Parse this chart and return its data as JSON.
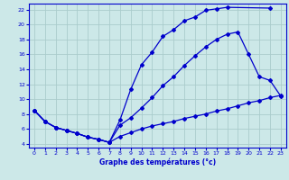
{
  "bg_color": "#cce8e8",
  "grid_color": "#aacccc",
  "line_color": "#0000cc",
  "xlim": [
    -0.5,
    23.5
  ],
  "ylim": [
    3.5,
    22.8
  ],
  "xticks": [
    0,
    1,
    2,
    3,
    4,
    5,
    6,
    7,
    8,
    9,
    10,
    11,
    12,
    13,
    14,
    15,
    16,
    17,
    18,
    19,
    20,
    21,
    22,
    23
  ],
  "yticks": [
    4,
    6,
    8,
    10,
    12,
    14,
    16,
    18,
    20,
    22
  ],
  "line1_x": [
    0,
    1,
    2,
    3,
    4,
    5,
    6,
    7,
    8,
    9,
    10,
    11,
    12,
    13,
    14,
    15,
    16,
    17,
    18,
    22
  ],
  "line1_y": [
    8.5,
    7.0,
    6.2,
    5.8,
    5.4,
    4.9,
    4.6,
    4.2,
    7.2,
    11.3,
    14.6,
    16.3,
    18.4,
    19.3,
    20.5,
    21.0,
    21.9,
    22.1,
    22.3,
    22.2
  ],
  "line2_x": [
    0,
    1,
    2,
    3,
    4,
    5,
    6,
    7,
    8,
    9,
    10,
    11,
    12,
    13,
    14,
    15,
    16,
    17,
    18,
    19,
    20,
    21,
    22,
    23
  ],
  "line2_y": [
    8.5,
    7.0,
    6.2,
    5.8,
    5.4,
    4.9,
    4.6,
    4.2,
    6.5,
    7.5,
    8.8,
    10.2,
    11.8,
    13.0,
    14.5,
    15.8,
    17.0,
    18.0,
    18.7,
    19.0,
    16.0,
    13.0,
    12.5,
    10.4
  ],
  "line3_x": [
    0,
    1,
    2,
    3,
    4,
    5,
    6,
    7,
    8,
    9,
    10,
    11,
    12,
    13,
    14,
    15,
    16,
    17,
    18,
    19,
    20,
    21,
    22,
    23
  ],
  "line3_y": [
    8.5,
    7.0,
    6.2,
    5.8,
    5.4,
    4.9,
    4.6,
    4.2,
    5.0,
    5.5,
    6.0,
    6.4,
    6.7,
    7.0,
    7.4,
    7.7,
    8.0,
    8.4,
    8.7,
    9.1,
    9.5,
    9.8,
    10.2,
    10.5
  ],
  "xlabel": "Graphe des températures (°c)"
}
